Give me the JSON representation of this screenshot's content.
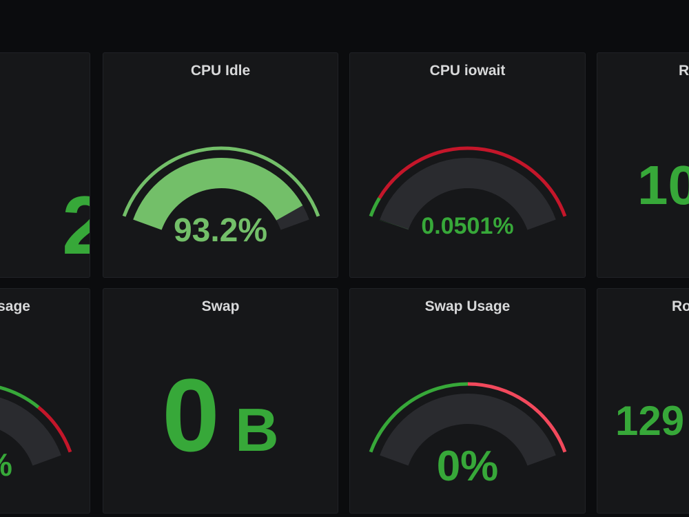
{
  "colors": {
    "green": "#37a839",
    "light_green": "#73bf69",
    "red": "#c4162a",
    "light_red": "#f2495c",
    "track": "#2a2b2f",
    "panel_bg": "#161719"
  },
  "panels": {
    "row1_col0": {
      "title": "",
      "value": "2"
    },
    "cpu_idle": {
      "title": "CPU Idle",
      "value": "93.2%",
      "fraction": 0.932
    },
    "cpu_iowait": {
      "title": "CPU iowait",
      "value": "0.0501%",
      "fraction": 0.0005
    },
    "row1_col3": {
      "title": "R",
      "value": "10"
    },
    "row2_col0": {
      "title": "sage",
      "value": "%"
    },
    "swap": {
      "title": "Swap",
      "value_number": "0",
      "value_unit": "B"
    },
    "swap_usage": {
      "title": "Swap Usage",
      "value": "0%",
      "fraction": 0
    },
    "row2_col3": {
      "title": "Ro",
      "value": "129"
    }
  }
}
